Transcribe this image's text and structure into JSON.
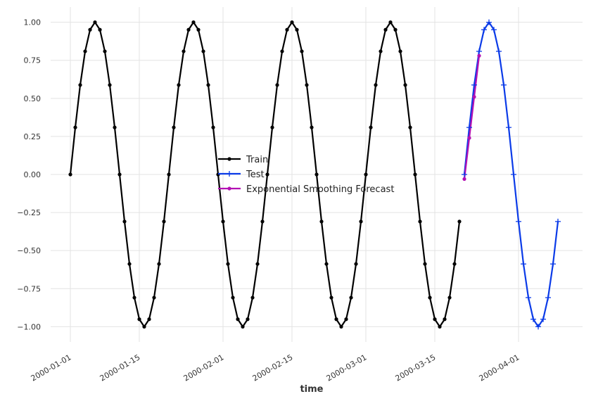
{
  "chart_data": {
    "type": "line",
    "title": "",
    "xlabel": "time",
    "ylabel": "",
    "grid": true,
    "legend_position": "center",
    "x_type": "date",
    "xlim": [
      "1999-12-28",
      "2000-04-14"
    ],
    "ylim": [
      -1.1,
      1.1
    ],
    "x_ticks": [
      "2000-01-01",
      "2000-01-15",
      "2000-02-01",
      "2000-02-15",
      "2000-03-01",
      "2000-03-15",
      "2000-04-01"
    ],
    "y_ticks": [
      -1.0,
      -0.75,
      -0.5,
      -0.25,
      0.0,
      0.25,
      0.5,
      0.75,
      1.0
    ],
    "y_tick_labels": [
      "−1.00",
      "−0.75",
      "−0.50",
      "−0.25",
      "0.00",
      "0.25",
      "0.50",
      "0.75",
      "1.00"
    ],
    "series": [
      {
        "name": "Train",
        "color": "#000000",
        "marker": "dot",
        "x_start": "2000-01-01",
        "x_step_days": 1,
        "values": [
          0.0,
          0.309,
          0.588,
          0.809,
          0.951,
          1.0,
          0.951,
          0.809,
          0.588,
          0.309,
          0.0,
          -0.309,
          -0.588,
          -0.809,
          -0.951,
          -1.0,
          -0.951,
          -0.809,
          -0.588,
          -0.309,
          0.0,
          0.309,
          0.588,
          0.809,
          0.951,
          1.0,
          0.951,
          0.809,
          0.588,
          0.309,
          0.0,
          -0.309,
          -0.588,
          -0.809,
          -0.951,
          -1.0,
          -0.951,
          -0.809,
          -0.588,
          -0.309,
          0.0,
          0.309,
          0.588,
          0.809,
          0.951,
          1.0,
          0.951,
          0.809,
          0.588,
          0.309,
          0.0,
          -0.309,
          -0.588,
          -0.809,
          -0.951,
          -1.0,
          -0.951,
          -0.809,
          -0.588,
          -0.309,
          0.0,
          0.309,
          0.588,
          0.809,
          0.951,
          1.0,
          0.951,
          0.809,
          0.588,
          0.309,
          0.0,
          -0.309,
          -0.588,
          -0.809,
          -0.951,
          -1.0,
          -0.951,
          -0.809,
          -0.588,
          -0.309
        ]
      },
      {
        "name": "Test",
        "color": "#0b3be8",
        "marker": "plus",
        "x_start": "2000-03-21",
        "x_step_days": 1,
        "values": [
          0.0,
          0.309,
          0.588,
          0.809,
          0.951,
          1.0,
          0.951,
          0.809,
          0.588,
          0.309,
          0.0,
          -0.309,
          -0.588,
          -0.809,
          -0.951,
          -1.0,
          -0.951,
          -0.809,
          -0.588,
          -0.309
        ]
      },
      {
        "name": "Exponential Smoothing Forecast",
        "color": "#b310b3",
        "marker": "dot",
        "x_start": "2000-03-21",
        "x_step_days": 1,
        "values": [
          -0.03,
          0.24,
          0.51,
          0.78
        ]
      }
    ]
  }
}
